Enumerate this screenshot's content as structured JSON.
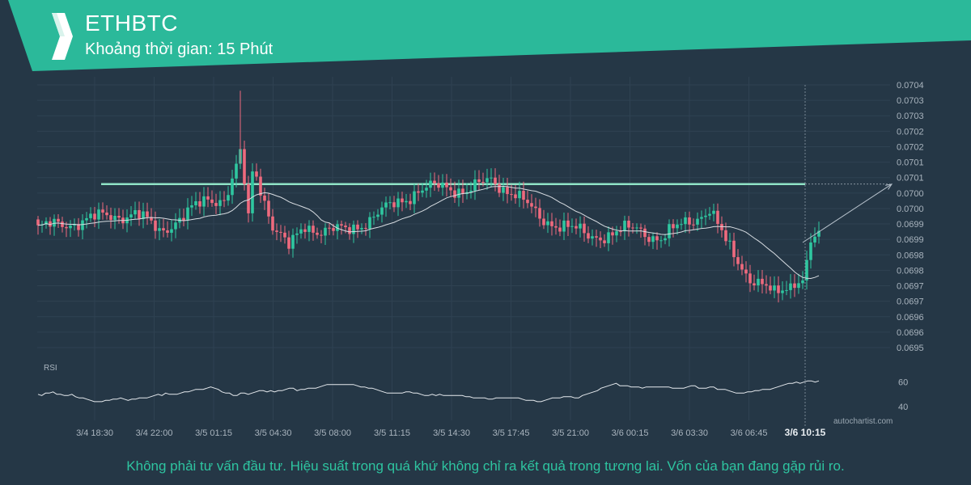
{
  "header": {
    "symbol": "ETHBTC",
    "interval_text": "Khoảng thời gian: 15 Phút",
    "bg_color": "#2bb99a"
  },
  "chart_data": {
    "type": "candlestick",
    "price_axis": {
      "ticks": [
        "0.0704",
        "0.0703",
        "0.0703",
        "0.0702",
        "0.0702",
        "0.0701",
        "0.0701",
        "0.0700",
        "0.0700",
        "0.0699",
        "0.0699",
        "0.0698",
        "0.0698",
        "0.0697",
        "0.0697",
        "0.0696",
        "0.0696",
        "0.0695"
      ]
    },
    "x_axis": {
      "ticks": [
        "3/4 18:30",
        "3/4 22:00",
        "3/5 01:15",
        "3/5 04:30",
        "3/5 08:00",
        "3/5 11:15",
        "3/5 14:30",
        "3/5 17:45",
        "3/5 21:00",
        "3/6 00:15",
        "3/6 03:30",
        "3/6 06:45"
      ],
      "current_label": "3/6 10:15"
    },
    "resistance_level": 0.07008,
    "projection_target": 0.07008,
    "colors": {
      "up": "#2fc7a0",
      "down": "#ef6a7e",
      "ma": "#d8dde2",
      "level": "#8fe3c6",
      "grid": "#2f4252",
      "axis_text": "#a9b4be",
      "accent": "#2bb99a"
    },
    "rsi": {
      "label": "RSI",
      "ticks": [
        "60",
        "40"
      ],
      "values": [
        50,
        49,
        51,
        51,
        52,
        50,
        50,
        49,
        49,
        50,
        48,
        47,
        47,
        46,
        45,
        44,
        44,
        44,
        45,
        45,
        46,
        46,
        47,
        46,
        45,
        46,
        46,
        47,
        47,
        47,
        48,
        49,
        50,
        49,
        51,
        50,
        50,
        50,
        51,
        52,
        52,
        53,
        54,
        54,
        54,
        55,
        56,
        55,
        54,
        52,
        51,
        51,
        49,
        49,
        51,
        51,
        50,
        51,
        52,
        53,
        53,
        52,
        53,
        52,
        53,
        53,
        54,
        55,
        55,
        53,
        54,
        54,
        55,
        55,
        55,
        56,
        57,
        58,
        58,
        58,
        58,
        58,
        58,
        58,
        58,
        57,
        56,
        56,
        55,
        55,
        54,
        53,
        52,
        51,
        51,
        51,
        51,
        51,
        52,
        52,
        51,
        51,
        50,
        49,
        49,
        50,
        49,
        50,
        49,
        49,
        49,
        49,
        49,
        49,
        48,
        48,
        47,
        47,
        47,
        47,
        46,
        46,
        47,
        47,
        47,
        47,
        47,
        47,
        47,
        46,
        45,
        45,
        45,
        44,
        44,
        45,
        46,
        47,
        47,
        47,
        48,
        48,
        48,
        47,
        47,
        49,
        50,
        51,
        52,
        53,
        55,
        56,
        57,
        58,
        59,
        57,
        57,
        57,
        56,
        56,
        56,
        55,
        56,
        56,
        56,
        56,
        56,
        56,
        56,
        55,
        55,
        55,
        55,
        56,
        57,
        57,
        55,
        55,
        55,
        56,
        56,
        54,
        54,
        54,
        53,
        52,
        51,
        51,
        51,
        52,
        52,
        53,
        53,
        54,
        54,
        54,
        55,
        56,
        57,
        58,
        59,
        59,
        60,
        59,
        60,
        61,
        61,
        60,
        61
      ]
    }
  },
  "footer": {
    "disclaimer": "Không phải tư vấn đầu tư. Hiệu suất trong quá khứ không chỉ ra kết quả trong tương lai. Vốn của bạn đang gặp rủi ro.",
    "watermark": "autochartist.com"
  }
}
